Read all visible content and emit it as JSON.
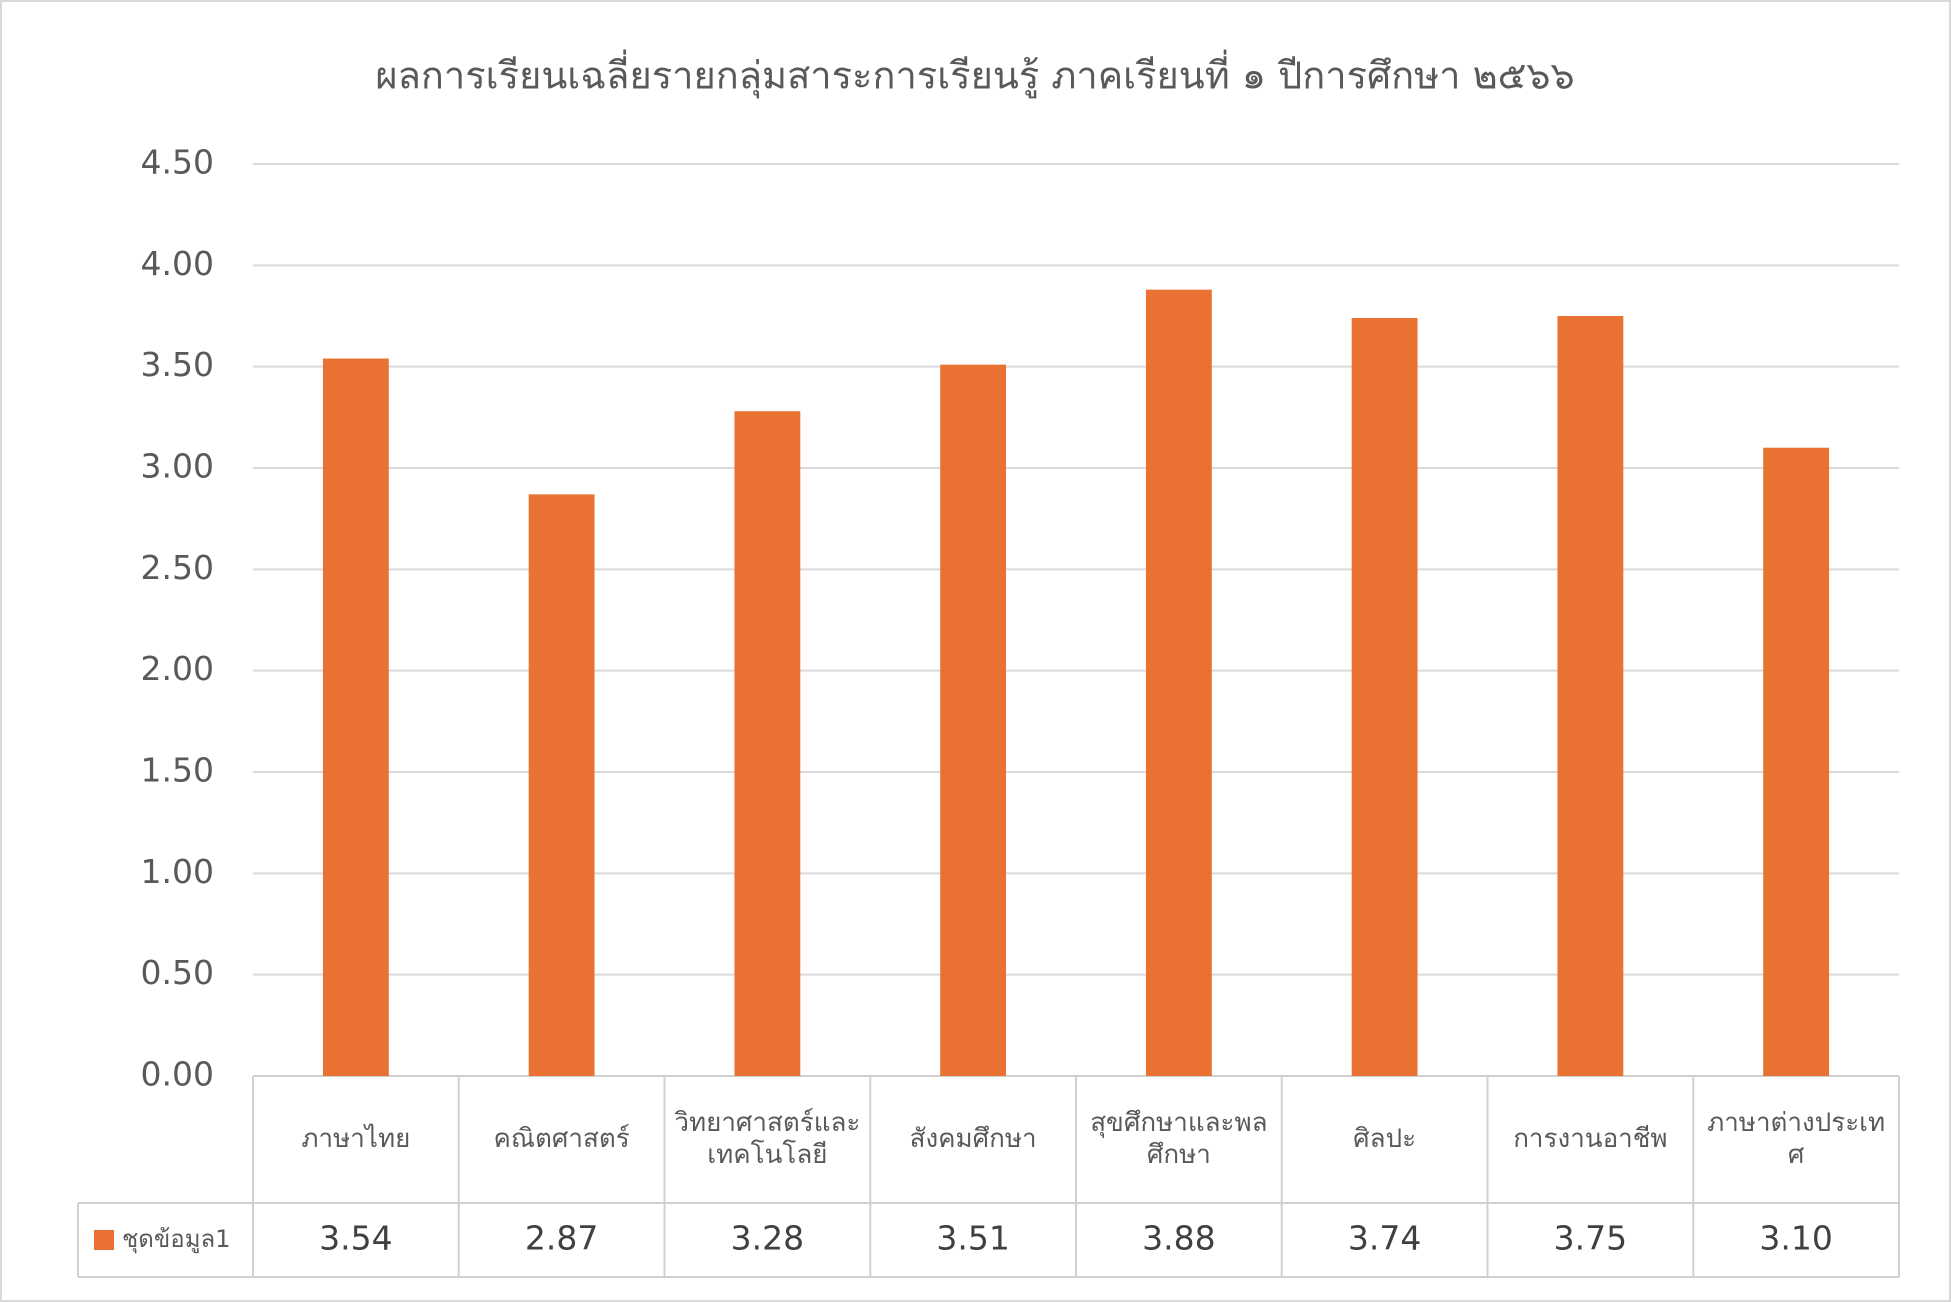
{
  "chart_data": {
    "type": "bar",
    "title": "ผลการเรียนเฉลี่ยรายกลุ่มสาระการเรียนรู้  ภาคเรียนที่ ๑ ปีการศึกษา ๒๕๖๖",
    "categories": [
      "ภาษาไทย",
      "คณิตศาสตร์",
      "วิทยาศาสตร์และเทคโนโลยี",
      "สังคมศึกษา",
      "สุขศึกษาและพลศึกษา",
      "ศิลปะ",
      "การงานอาชีพ",
      "ภาษาต่างประเทศ"
    ],
    "series": [
      {
        "name": "ชุดข้อมูล1",
        "color": "#e97132",
        "values": [
          3.54,
          2.87,
          3.28,
          3.51,
          3.88,
          3.74,
          3.75,
          3.1
        ],
        "value_labels": [
          "3.54",
          "2.87",
          "3.28",
          "3.51",
          "3.88",
          "3.74",
          "3.75",
          "3.10"
        ]
      }
    ],
    "ylim": [
      0,
      4.5
    ],
    "yticks": [
      {
        "value": 0,
        "label": "0.00"
      },
      {
        "value": 0.5,
        "label": "0.50"
      },
      {
        "value": 1,
        "label": "1.00"
      },
      {
        "value": 1.5,
        "label": "1.50"
      },
      {
        "value": 2,
        "label": "2.00"
      },
      {
        "value": 2.5,
        "label": "2.50"
      },
      {
        "value": 3,
        "label": "3.00"
      },
      {
        "value": 3.5,
        "label": "3.50"
      },
      {
        "value": 4,
        "label": "4.00"
      },
      {
        "value": 4.5,
        "label": "4.50"
      }
    ],
    "grid": true
  }
}
